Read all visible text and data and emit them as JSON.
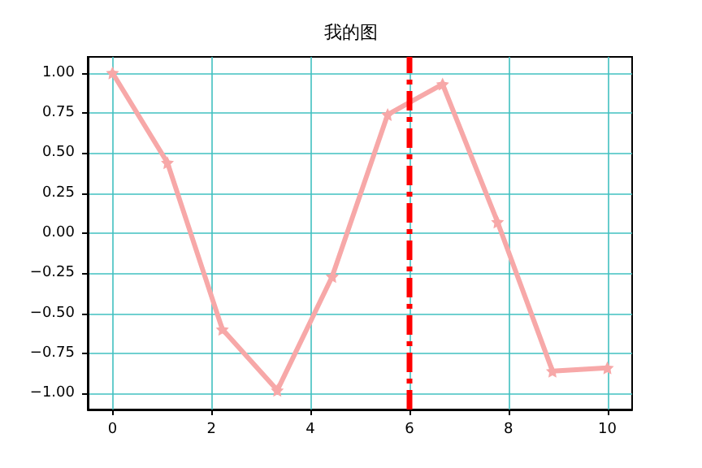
{
  "chart_data": {
    "type": "line",
    "title": "我的图",
    "x": [
      0,
      1.11,
      2.22,
      3.33,
      4.44,
      5.56,
      6.67,
      7.78,
      8.89,
      10
    ],
    "series": [
      {
        "color": "#f7a8a8",
        "values": [
          1,
          0.44,
          -0.6,
          -0.98,
          -0.27,
          0.74,
          0.93,
          0.07,
          -0.86,
          -0.84
        ]
      }
    ],
    "xlim": [
      -0.5,
      10.5
    ],
    "ylim": [
      -1.1,
      1.1
    ],
    "xticks": [
      0,
      2,
      4,
      6,
      8,
      10
    ],
    "yticks": [
      {
        "value": -1,
        "label": "−1.00"
      },
      {
        "value": -0.75,
        "label": "−0.75"
      },
      {
        "value": -0.5,
        "label": "−0.50"
      },
      {
        "value": -0.25,
        "label": "−0.25"
      },
      {
        "value": 0,
        "label": "0.00"
      },
      {
        "value": 0.25,
        "label": "0.25"
      },
      {
        "value": 0.5,
        "label": "0.50"
      },
      {
        "value": 0.75,
        "label": "0.75"
      },
      {
        "value": 1,
        "label": "1.00"
      }
    ],
    "grid": true,
    "marker": "star",
    "line_style": "solid",
    "ref_lines": [
      {
        "axis": "x",
        "value": 6,
        "color": "#ff0000",
        "line_style": "dashed"
      }
    ]
  }
}
